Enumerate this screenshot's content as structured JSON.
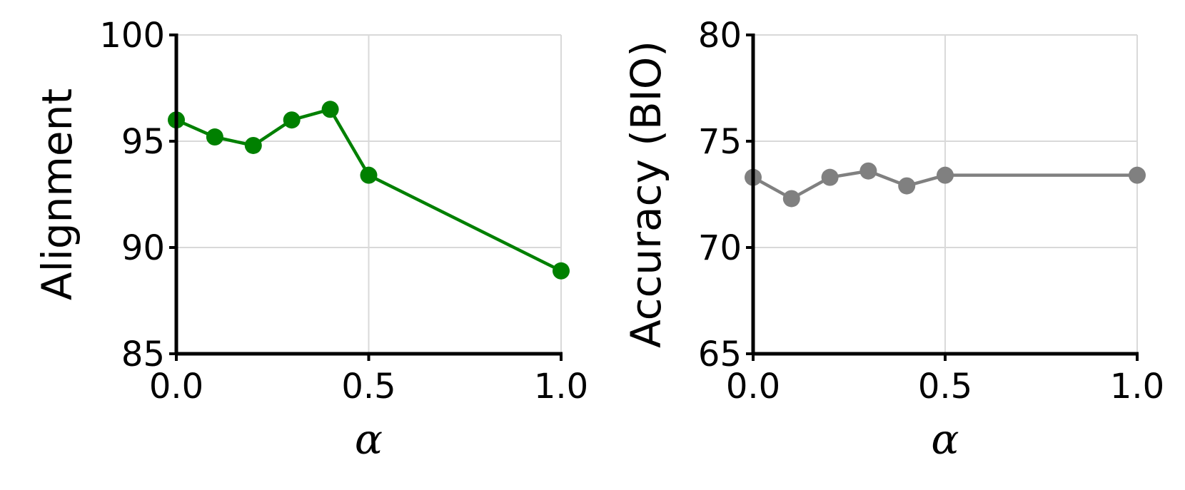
{
  "colors": {
    "left_series": "#008000",
    "right_series": "#808080",
    "grid": "#d9d9d9",
    "axis": "#000000"
  },
  "chart_data": [
    {
      "type": "line",
      "xlabel": "α",
      "ylabel": "Alignment",
      "xlim": [
        0.0,
        1.0
      ],
      "ylim": [
        85,
        100
      ],
      "xticks": [
        "0.0",
        "0.5",
        "1.0"
      ],
      "yticks": [
        "85",
        "90",
        "95",
        "100"
      ],
      "xtick_values": [
        0.0,
        0.5,
        1.0
      ],
      "ytick_values": [
        85,
        90,
        95,
        100
      ],
      "grid": true,
      "series": [
        {
          "x": [
            0.0,
            0.1,
            0.2,
            0.3,
            0.4,
            0.5,
            1.0
          ],
          "values": [
            96.0,
            95.2,
            94.8,
            96.0,
            96.5,
            93.4,
            88.9
          ],
          "color": "#008000",
          "marker": "circle"
        }
      ]
    },
    {
      "type": "line",
      "xlabel": "α",
      "ylabel": "Accuracy (BIO)",
      "xlim": [
        0.0,
        1.0
      ],
      "ylim": [
        65,
        80
      ],
      "xticks": [
        "0.0",
        "0.5",
        "1.0"
      ],
      "yticks": [
        "65",
        "70",
        "75",
        "80"
      ],
      "xtick_values": [
        0.0,
        0.5,
        1.0
      ],
      "ytick_values": [
        65,
        70,
        75,
        80
      ],
      "grid": true,
      "series": [
        {
          "x": [
            0.0,
            0.1,
            0.2,
            0.3,
            0.4,
            0.5,
            1.0
          ],
          "values": [
            73.3,
            72.3,
            73.3,
            73.6,
            72.9,
            73.4,
            73.4
          ],
          "color": "#808080",
          "marker": "circle"
        }
      ]
    }
  ]
}
